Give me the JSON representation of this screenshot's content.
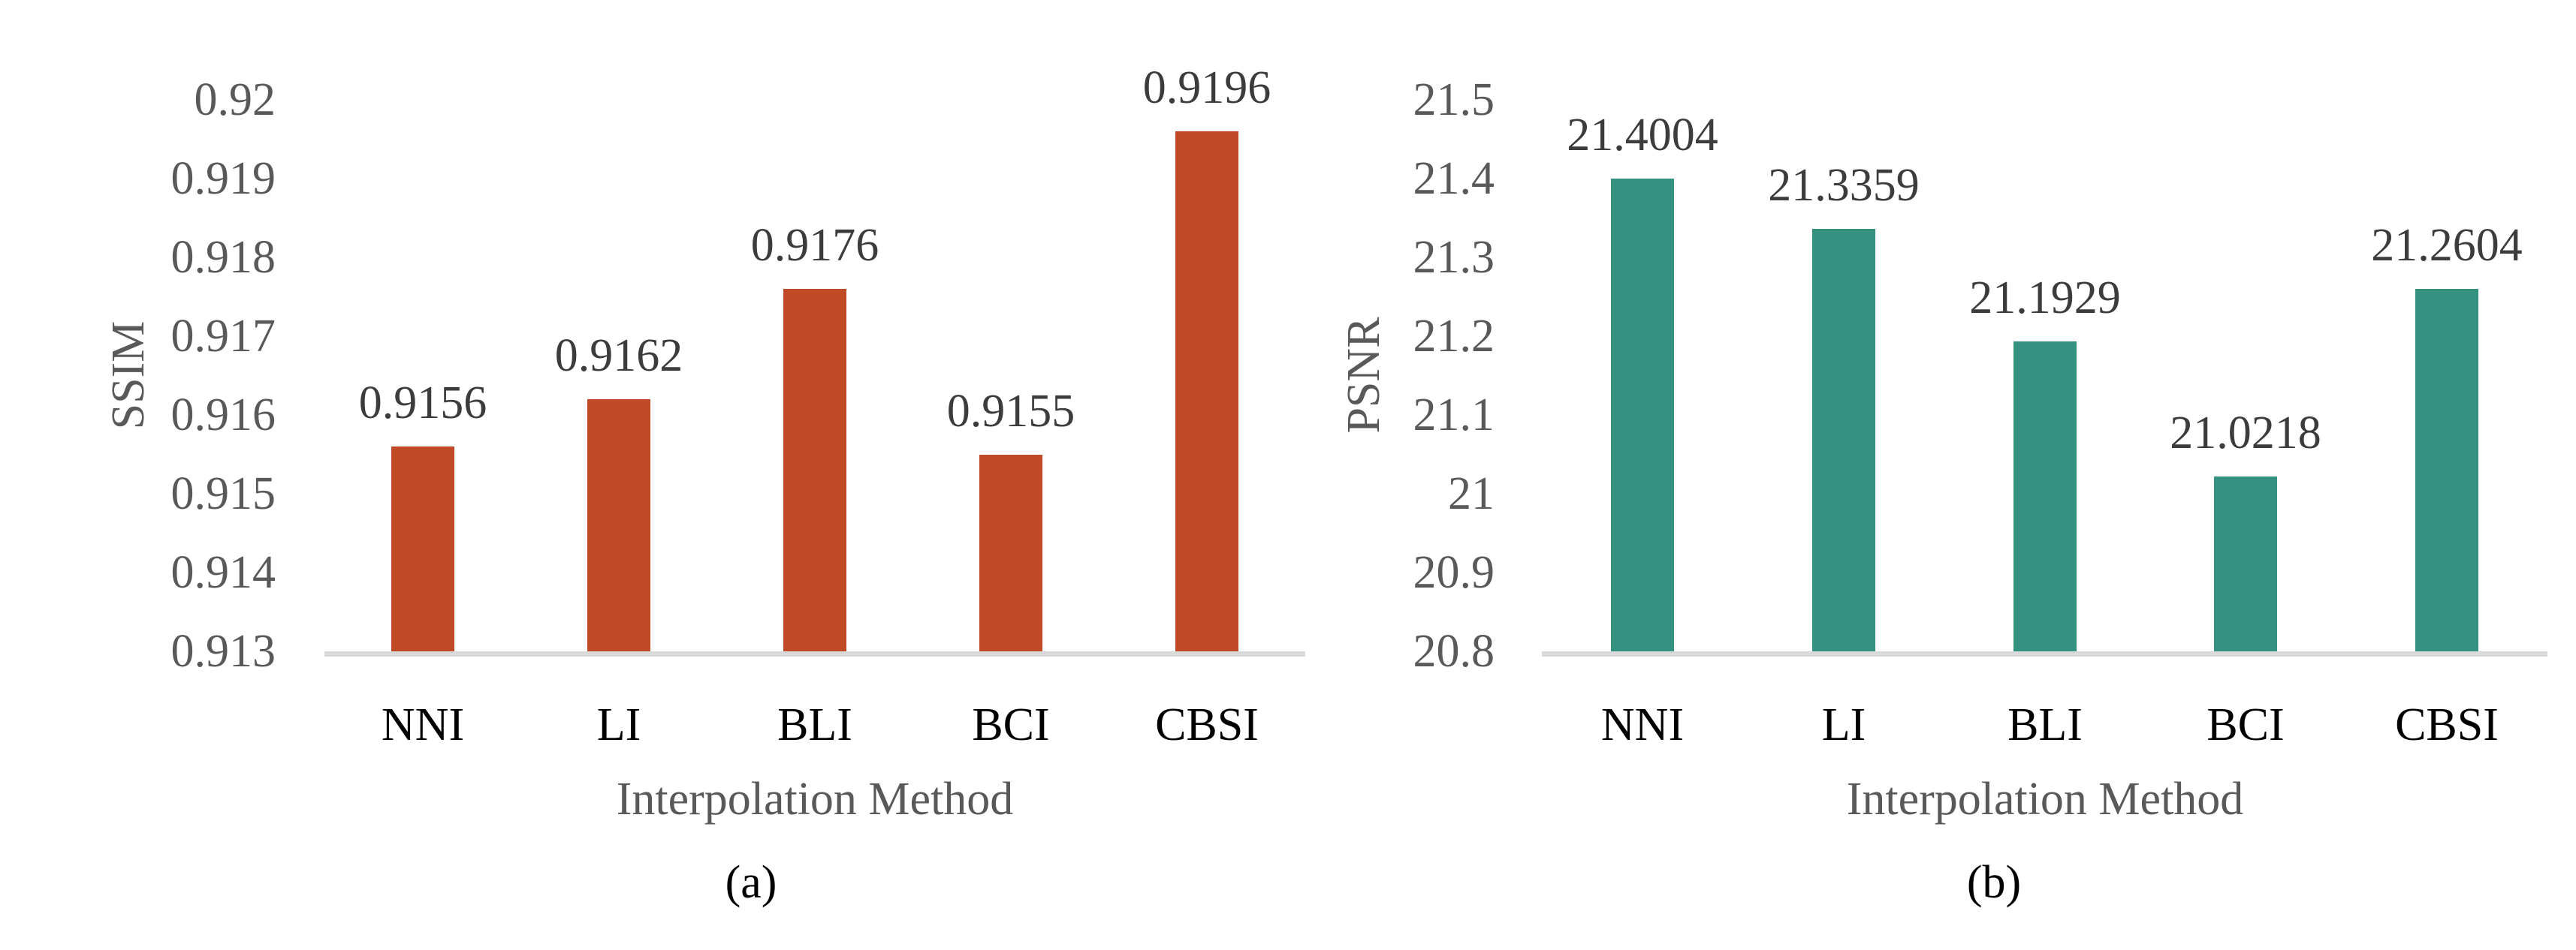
{
  "chart_data": [
    {
      "type": "bar",
      "panel": "a",
      "caption": "(a)",
      "categories": [
        "NNI",
        "LI",
        "BLI",
        "BCI",
        "CBSI"
      ],
      "values": [
        0.9156,
        0.9162,
        0.9176,
        0.9155,
        0.9196
      ],
      "value_labels": [
        "0.9156",
        "0.9162",
        "0.9176",
        "0.9155",
        "0.9196"
      ],
      "xlabel": "Interpolation Method",
      "ylabel": "SSIM",
      "ylim": [
        0.913,
        0.92
      ],
      "ytick_labels": [
        "0.92",
        "0.919",
        "0.918",
        "0.917",
        "0.916",
        "0.915",
        "0.914",
        "0.913"
      ],
      "bar_color": "#C14A26",
      "grid": false,
      "legend": "none"
    },
    {
      "type": "bar",
      "panel": "b",
      "caption": "(b)",
      "categories": [
        "NNI",
        "LI",
        "BLI",
        "BCI",
        "CBSI"
      ],
      "values": [
        21.4004,
        21.3359,
        21.1929,
        21.0218,
        21.2604
      ],
      "value_labels": [
        "21.4004",
        "21.3359",
        "21.1929",
        "21.0218",
        "21.2604"
      ],
      "xlabel": "Interpolation Method",
      "ylabel": "PSNR",
      "ylim": [
        20.8,
        21.5
      ],
      "ytick_labels": [
        "21.5",
        "21.4",
        "21.3",
        "21.2",
        "21.1",
        "21",
        "20.9",
        "20.8"
      ],
      "bar_color": "#349180",
      "grid": false,
      "legend": "none"
    }
  ],
  "colors": {
    "background": "#FFFFFF",
    "tick_text": "#595959",
    "axis_title_text": "#595959",
    "category_text": "#000000",
    "value_label_text": "#3C3C3C",
    "caption_text": "#000000",
    "baseline": "#D9D9D9"
  }
}
